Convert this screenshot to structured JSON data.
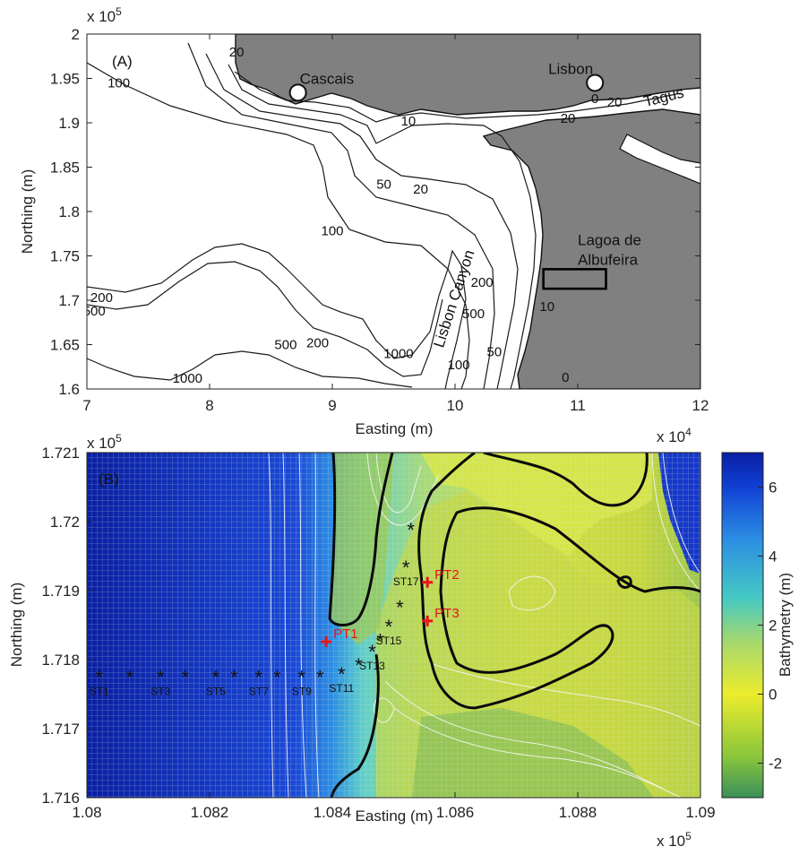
{
  "chart_data": [
    {
      "type": "contour-map",
      "panel_label": "(A)",
      "xlabel": "Easting (m)",
      "ylabel": "Northing (m)",
      "x_multiplier": "x 10",
      "x_multiplier_exp": "4",
      "y_multiplier": "x 10",
      "y_multiplier_exp": "5",
      "xlim": [
        7,
        12
      ],
      "ylim": [
        1.6,
        2.0
      ],
      "x_ticks": [
        "7",
        "8",
        "9",
        "10",
        "11",
        "12"
      ],
      "y_ticks": [
        "1.6",
        "1.65",
        "1.7",
        "1.75",
        "1.8",
        "1.85",
        "1.9",
        "1.95",
        "2"
      ],
      "places": [
        {
          "name": "Cascais",
          "x": 8.72,
          "y": 1.934
        },
        {
          "name": "Lisbon",
          "x": 11.14,
          "y": 1.945
        },
        {
          "name": "Tagus",
          "x": 11.55,
          "y": 1.918
        },
        {
          "name": "Lagoa de",
          "x": 11.0,
          "y": 1.762
        },
        {
          "name": "Albufeira",
          "x": 11.0,
          "y": 1.74
        },
        {
          "name": "Lisbon Canyon",
          "x": 10.03,
          "y": 1.7
        }
      ],
      "contour_labels": [
        {
          "text": "100",
          "x": 7.26,
          "y": 1.94
        },
        {
          "text": "20",
          "x": 8.22,
          "y": 1.975
        },
        {
          "text": "20",
          "x": 10.92,
          "y": 1.9
        },
        {
          "text": "20",
          "x": 11.3,
          "y": 1.918
        },
        {
          "text": "0",
          "x": 11.14,
          "y": 1.922
        },
        {
          "text": "10",
          "x": 9.62,
          "y": 1.897
        },
        {
          "text": "50",
          "x": 9.42,
          "y": 1.826
        },
        {
          "text": "20",
          "x": 9.72,
          "y": 1.82
        },
        {
          "text": "100",
          "x": 9.0,
          "y": 1.773
        },
        {
          "text": "200",
          "x": 10.22,
          "y": 1.715
        },
        {
          "text": "10",
          "x": 10.75,
          "y": 1.688
        },
        {
          "text": "500",
          "x": 10.15,
          "y": 1.68
        },
        {
          "text": "50",
          "x": 10.32,
          "y": 1.637
        },
        {
          "text": "100",
          "x": 10.03,
          "y": 1.622
        },
        {
          "text": "1000",
          "x": 9.54,
          "y": 1.635
        },
        {
          "text": "500",
          "x": 8.62,
          "y": 1.645
        },
        {
          "text": "200",
          "x": 8.88,
          "y": 1.647
        },
        {
          "text": "200",
          "x": 7.12,
          "y": 1.698
        },
        {
          "text": "500",
          "x": 7.06,
          "y": 1.683
        },
        {
          "text": "1000",
          "x": 7.82,
          "y": 1.607
        },
        {
          "text": "0",
          "x": 10.9,
          "y": 1.608
        }
      ],
      "study_area_box": {
        "x": [
          10.72,
          11.23
        ],
        "y": [
          1.713,
          1.735
        ]
      }
    },
    {
      "type": "heatmap",
      "panel_label": "(B)",
      "xlabel": "Easting (m)",
      "ylabel": "Northing (m)",
      "x_multiplier": "x 10",
      "x_multiplier_exp": "5",
      "y_multiplier": "x 10",
      "y_multiplier_exp": "5",
      "xlim": [
        1.08,
        1.09
      ],
      "ylim": [
        1.716,
        1.721
      ],
      "x_ticks": [
        "1.08",
        "1.082",
        "1.084",
        "1.086",
        "1.088",
        "1.09"
      ],
      "y_ticks": [
        "1.716",
        "1.717",
        "1.718",
        "1.719",
        "1.72",
        "1.721"
      ],
      "colorbar": {
        "label": "Bathymetry (m)",
        "range": [
          -3,
          7
        ],
        "ticks": [
          "-2",
          "0",
          "2",
          "4",
          "6"
        ],
        "colors": [
          "#2e8b57",
          "#7cc23a",
          "#ecee2a",
          "#9bd36f",
          "#3fc7c8",
          "#2a8ee0",
          "#0f3fd0",
          "#0a22a8"
        ]
      },
      "stations": [
        {
          "label": "ST1",
          "x": 1.0802,
          "y": 1.71775
        },
        {
          "label": "",
          "x": 1.0807,
          "y": 1.71775
        },
        {
          "label": "ST3",
          "x": 1.0812,
          "y": 1.71775
        },
        {
          "label": "",
          "x": 1.0816,
          "y": 1.71775
        },
        {
          "label": "ST5",
          "x": 1.0821,
          "y": 1.71775
        },
        {
          "label": "",
          "x": 1.0824,
          "y": 1.71775
        },
        {
          "label": "ST7",
          "x": 1.0828,
          "y": 1.71775
        },
        {
          "label": "",
          "x": 1.0831,
          "y": 1.71775
        },
        {
          "label": "ST9",
          "x": 1.0835,
          "y": 1.71775
        },
        {
          "label": "",
          "x": 1.0838,
          "y": 1.71775
        },
        {
          "label": "ST11",
          "x": 1.08415,
          "y": 1.71779
        },
        {
          "label": "",
          "x": 1.08443,
          "y": 1.71792
        },
        {
          "label": "ST13",
          "x": 1.08465,
          "y": 1.71812
        },
        {
          "label": "",
          "x": 1.08478,
          "y": 1.71828
        },
        {
          "label": "ST15",
          "x": 1.08492,
          "y": 1.71848
        },
        {
          "label": "",
          "x": 1.0851,
          "y": 1.71876
        },
        {
          "label": "ST17",
          "x": 1.0852,
          "y": 1.71934
        },
        {
          "label": "",
          "x": 1.08528,
          "y": 1.71988
        }
      ],
      "pressure_sensors": [
        {
          "label": "PT1",
          "x": 1.0839,
          "y": 1.71826
        },
        {
          "label": "PT2",
          "x": 1.08555,
          "y": 1.71912
        },
        {
          "label": "PT3",
          "x": 1.08555,
          "y": 1.71856
        }
      ]
    }
  ]
}
